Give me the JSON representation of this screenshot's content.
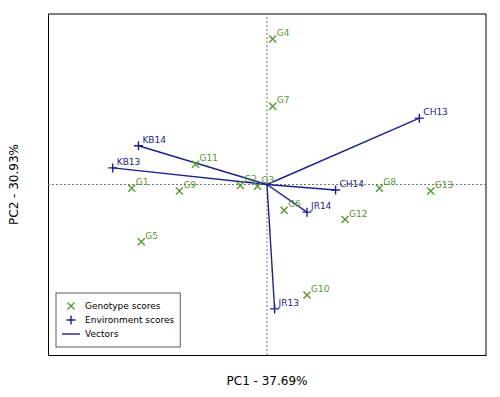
{
  "chart_data": {
    "type": "scatter",
    "xlabel": "PC1 - 37.69%",
    "ylabel": "PC2 - 30.93%",
    "xlim": [
      -2.3,
      2.3
    ],
    "ylim": [
      -1.85,
      1.85
    ],
    "tick_labels": false,
    "legend": "lower left",
    "origin": [
      0.0,
      0.0
    ],
    "series": [
      {
        "name": "Genotype scores",
        "type": "scatter",
        "marker": "x",
        "color": "#559933",
        "labels": [
          "G8",
          "G4",
          "G7",
          "G11",
          "G9",
          "G1",
          "G5",
          "G6",
          "G12",
          "G13",
          "G10",
          "G2",
          "G3"
        ],
        "x": [
          1.18,
          0.06,
          0.06,
          -0.75,
          -0.92,
          -1.42,
          -1.32,
          0.18,
          0.82,
          1.72,
          0.42,
          -0.28,
          -0.1
        ],
        "values": [
          -0.04,
          1.58,
          0.85,
          0.22,
          -0.07,
          -0.04,
          -0.62,
          -0.28,
          -0.38,
          -0.07,
          -1.2,
          -0.01,
          -0.02
        ]
      },
      {
        "name": "Environment scores",
        "type": "scatter",
        "marker": "plus",
        "color": "#1a2288",
        "labels": [
          "CH13",
          "CH14",
          "JR13",
          "JR14",
          "KB13",
          "KB14"
        ],
        "x": [
          1.6,
          0.72,
          0.08,
          0.42,
          -1.62,
          -1.35
        ],
        "values": [
          0.72,
          -0.06,
          -1.35,
          -0.3,
          0.18,
          0.42
        ]
      },
      {
        "name": "Vectors",
        "type": "vector",
        "line_style": "solid",
        "color": "#1a2288",
        "x": [
          1.6,
          0.72,
          0.08,
          0.42,
          -1.62,
          -1.35
        ],
        "values": [
          0.72,
          -0.06,
          -1.35,
          -0.3,
          0.18,
          0.42
        ]
      }
    ]
  }
}
